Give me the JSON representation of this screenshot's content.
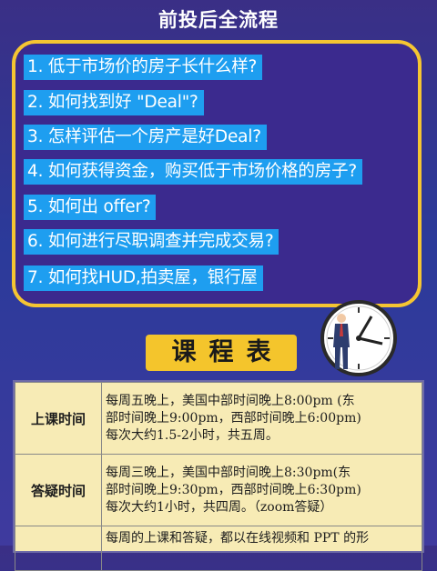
{
  "header": {
    "line1": "前投后全流程",
    "line2": "前投后全流程"
  },
  "questions": [
    "1. 低于市场价的房子长什么样?",
    "2. 如何找到好 \"Deal\"?",
    "3. 怎样评估一个房产是好Deal?",
    "4. 如何获得资金，购买低于市场价格的房子?",
    "5. 如何出 offer?",
    "6. 如何进行尽职调查并完成交易?",
    "7. 如何找HUD,拍卖屋，银行屋"
  ],
  "schedule": {
    "title": "课程表",
    "rows": [
      {
        "label": "上课时间",
        "lines": [
          "每周五晚上，美国中部时间晚上8:00pm (东",
          "部时间晚上9:00pm，西部时间晚上6:00pm)",
          "每次大约1.5-2小时，共五周。"
        ]
      },
      {
        "label": "答疑时间",
        "lines": [
          "每周三晚上，美国中部时间晚上8:30pm(东",
          "部时间晚上9:30pm，西部时间晚上6:30pm)",
          "每次大约1小时，共四周。（zoom答疑）"
        ]
      },
      {
        "label": "",
        "lines": [
          "每周的上课和答疑，都以在线视频和 PPT 的形"
        ]
      }
    ]
  },
  "colors": {
    "background": "#2f3494",
    "accent_yellow": "#f5c532",
    "question_blue": "#1e9ef0",
    "table_bg": "#f7ebb5"
  },
  "icons": {
    "clock": "clock-with-businessman-icon"
  }
}
